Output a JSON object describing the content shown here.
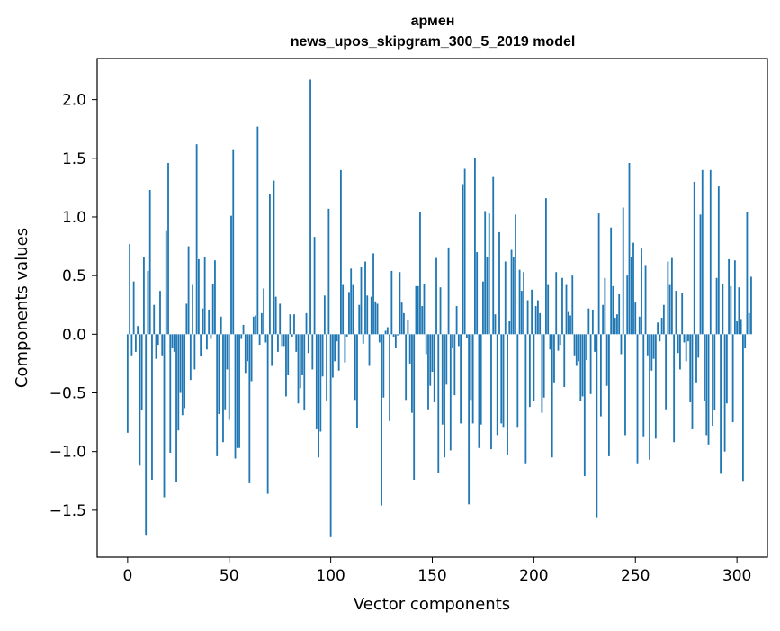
{
  "chart_data": {
    "type": "bar",
    "title": "армен",
    "subtitle": "news_upos_skipgram_300_5_2019 model",
    "xlabel": "Vector components",
    "ylabel": "Components values",
    "xlim": [
      -15,
      315
    ],
    "ylim": [
      -1.9,
      2.35
    ],
    "x_ticks": [
      0,
      50,
      100,
      150,
      200,
      250,
      300
    ],
    "x_tick_labels": [
      "0",
      "50",
      "100",
      "150",
      "200",
      "250",
      "300"
    ],
    "y_ticks": [
      -1.5,
      -1.0,
      -0.5,
      0.0,
      0.5,
      1.0,
      1.5,
      2.0
    ],
    "y_tick_labels": [
      "−1.5",
      "−1.0",
      "−0.5",
      "0.0",
      "0.5",
      "1.0",
      "1.5",
      "2.0"
    ],
    "grid": false,
    "bar_color": "#1f77b4",
    "values": [
      -0.84,
      0.77,
      -0.18,
      0.45,
      -0.15,
      0.07,
      -1.12,
      -0.65,
      0.66,
      -1.71,
      0.54,
      1.23,
      -1.24,
      0.25,
      -0.21,
      -0.09,
      0.37,
      -0.18,
      -1.39,
      0.88,
      1.46,
      -1.01,
      -0.12,
      -0.15,
      -1.26,
      -0.82,
      -0.5,
      -0.69,
      -0.63,
      0.26,
      0.75,
      -0.39,
      0.42,
      -0.3,
      1.62,
      0.64,
      -0.19,
      0.22,
      0.66,
      -0.13,
      0.21,
      -0.04,
      0.43,
      0.63,
      -1.04,
      -0.68,
      0.15,
      -0.92,
      -0.64,
      -0.3,
      -0.73,
      1.01,
      1.57,
      -1.06,
      -0.97,
      -0.97,
      -0.04,
      0.08,
      -0.33,
      -0.23,
      -1.27,
      -0.4,
      0.15,
      0.16,
      1.77,
      -0.09,
      0.18,
      0.39,
      -0.07,
      -1.36,
      1.2,
      -0.27,
      1.31,
      0.32,
      -0.15,
      0.26,
      -0.1,
      -0.1,
      -0.53,
      -0.35,
      0.17,
      -0.02,
      0.17,
      -0.15,
      -0.59,
      -0.46,
      -0.35,
      -0.65,
      0.18,
      -0.16,
      2.17,
      -0.3,
      0.83,
      -0.81,
      -1.05,
      -0.83,
      -0.36,
      0.33,
      -0.57,
      1.07,
      -1.73,
      -0.37,
      -0.23,
      -0.06,
      -0.31,
      1.4,
      0.42,
      -0.24,
      -0.02,
      0.36,
      0.56,
      0.42,
      -0.56,
      -0.8,
      0.25,
      0.57,
      -0.08,
      0.62,
      0.33,
      -0.27,
      0.32,
      0.69,
      0.28,
      0.26,
      -0.07,
      -1.46,
      -0.54,
      0.03,
      0.06,
      -0.74,
      0.54,
      -0.02,
      -0.12,
      -0.01,
      0.53,
      0.27,
      0.18,
      -0.56,
      0.12,
      -0.25,
      -0.67,
      -1.24,
      0.41,
      0.41,
      1.04,
      0.24,
      0.43,
      -0.17,
      -0.64,
      -0.44,
      -0.32,
      -0.58,
      0.65,
      -1.18,
      0.4,
      -0.77,
      -1.05,
      -0.43,
      0.74,
      -0.99,
      -0.12,
      -0.52,
      0.24,
      -0.1,
      -0.76,
      1.28,
      1.41,
      -0.03,
      -1.45,
      -0.56,
      -0.76,
      1.5,
      0.7,
      -0.97,
      -0.77,
      0.45,
      1.05,
      0.66,
      1.03,
      -0.98,
      1.34,
      0.17,
      -0.86,
      0.87,
      -0.76,
      -0.79,
      0.62,
      -1.03,
      0.11,
      0.72,
      0.66,
      1.02,
      -0.79,
      0.55,
      0.37,
      0.53,
      -1.1,
      0.29,
      -0.62,
      0.38,
      -0.57,
      0.24,
      0.29,
      0.18,
      -0.67,
      -0.54,
      1.16,
      0.42,
      -0.13,
      -1.05,
      -0.41,
      0.53,
      -0.14,
      -0.09,
      0.48,
      -0.45,
      0.42,
      0.19,
      0.16,
      0.5,
      -0.18,
      -0.27,
      -0.23,
      -0.57,
      -0.53,
      -1.21,
      -0.22,
      0.22,
      -0.51,
      0.21,
      -0.15,
      -1.56,
      1.03,
      -0.7,
      0.25,
      0.48,
      -0.44,
      -1.04,
      0.91,
      0.41,
      0.14,
      0.17,
      0.34,
      -0.17,
      1.08,
      -0.86,
      0.5,
      1.46,
      0.66,
      0.78,
      0.27,
      -1.1,
      0.15,
      0.73,
      -0.87,
      0.59,
      -0.18,
      -1.07,
      -0.31,
      -0.21,
      -0.89,
      0.1,
      -0.06,
      0.14,
      0.25,
      -0.64,
      0.62,
      0.42,
      0.65,
      -0.92,
      0.37,
      -0.16,
      -0.3,
      0.35,
      -0.07,
      -0.23,
      -0.06,
      -0.58,
      -0.81,
      1.3,
      -0.41,
      -0.2,
      1.02,
      1.4,
      -0.57,
      -0.86,
      -0.94,
      1.4,
      -0.78,
      -0.65,
      0.48,
      1.26,
      -1.19,
      0.43,
      -1.0,
      -0.59,
      0.64,
      0.41,
      -0.75,
      0.63,
      0.11,
      0.4,
      0.13,
      -1.25,
      -0.12,
      1.04,
      0.18,
      0.49
    ]
  }
}
